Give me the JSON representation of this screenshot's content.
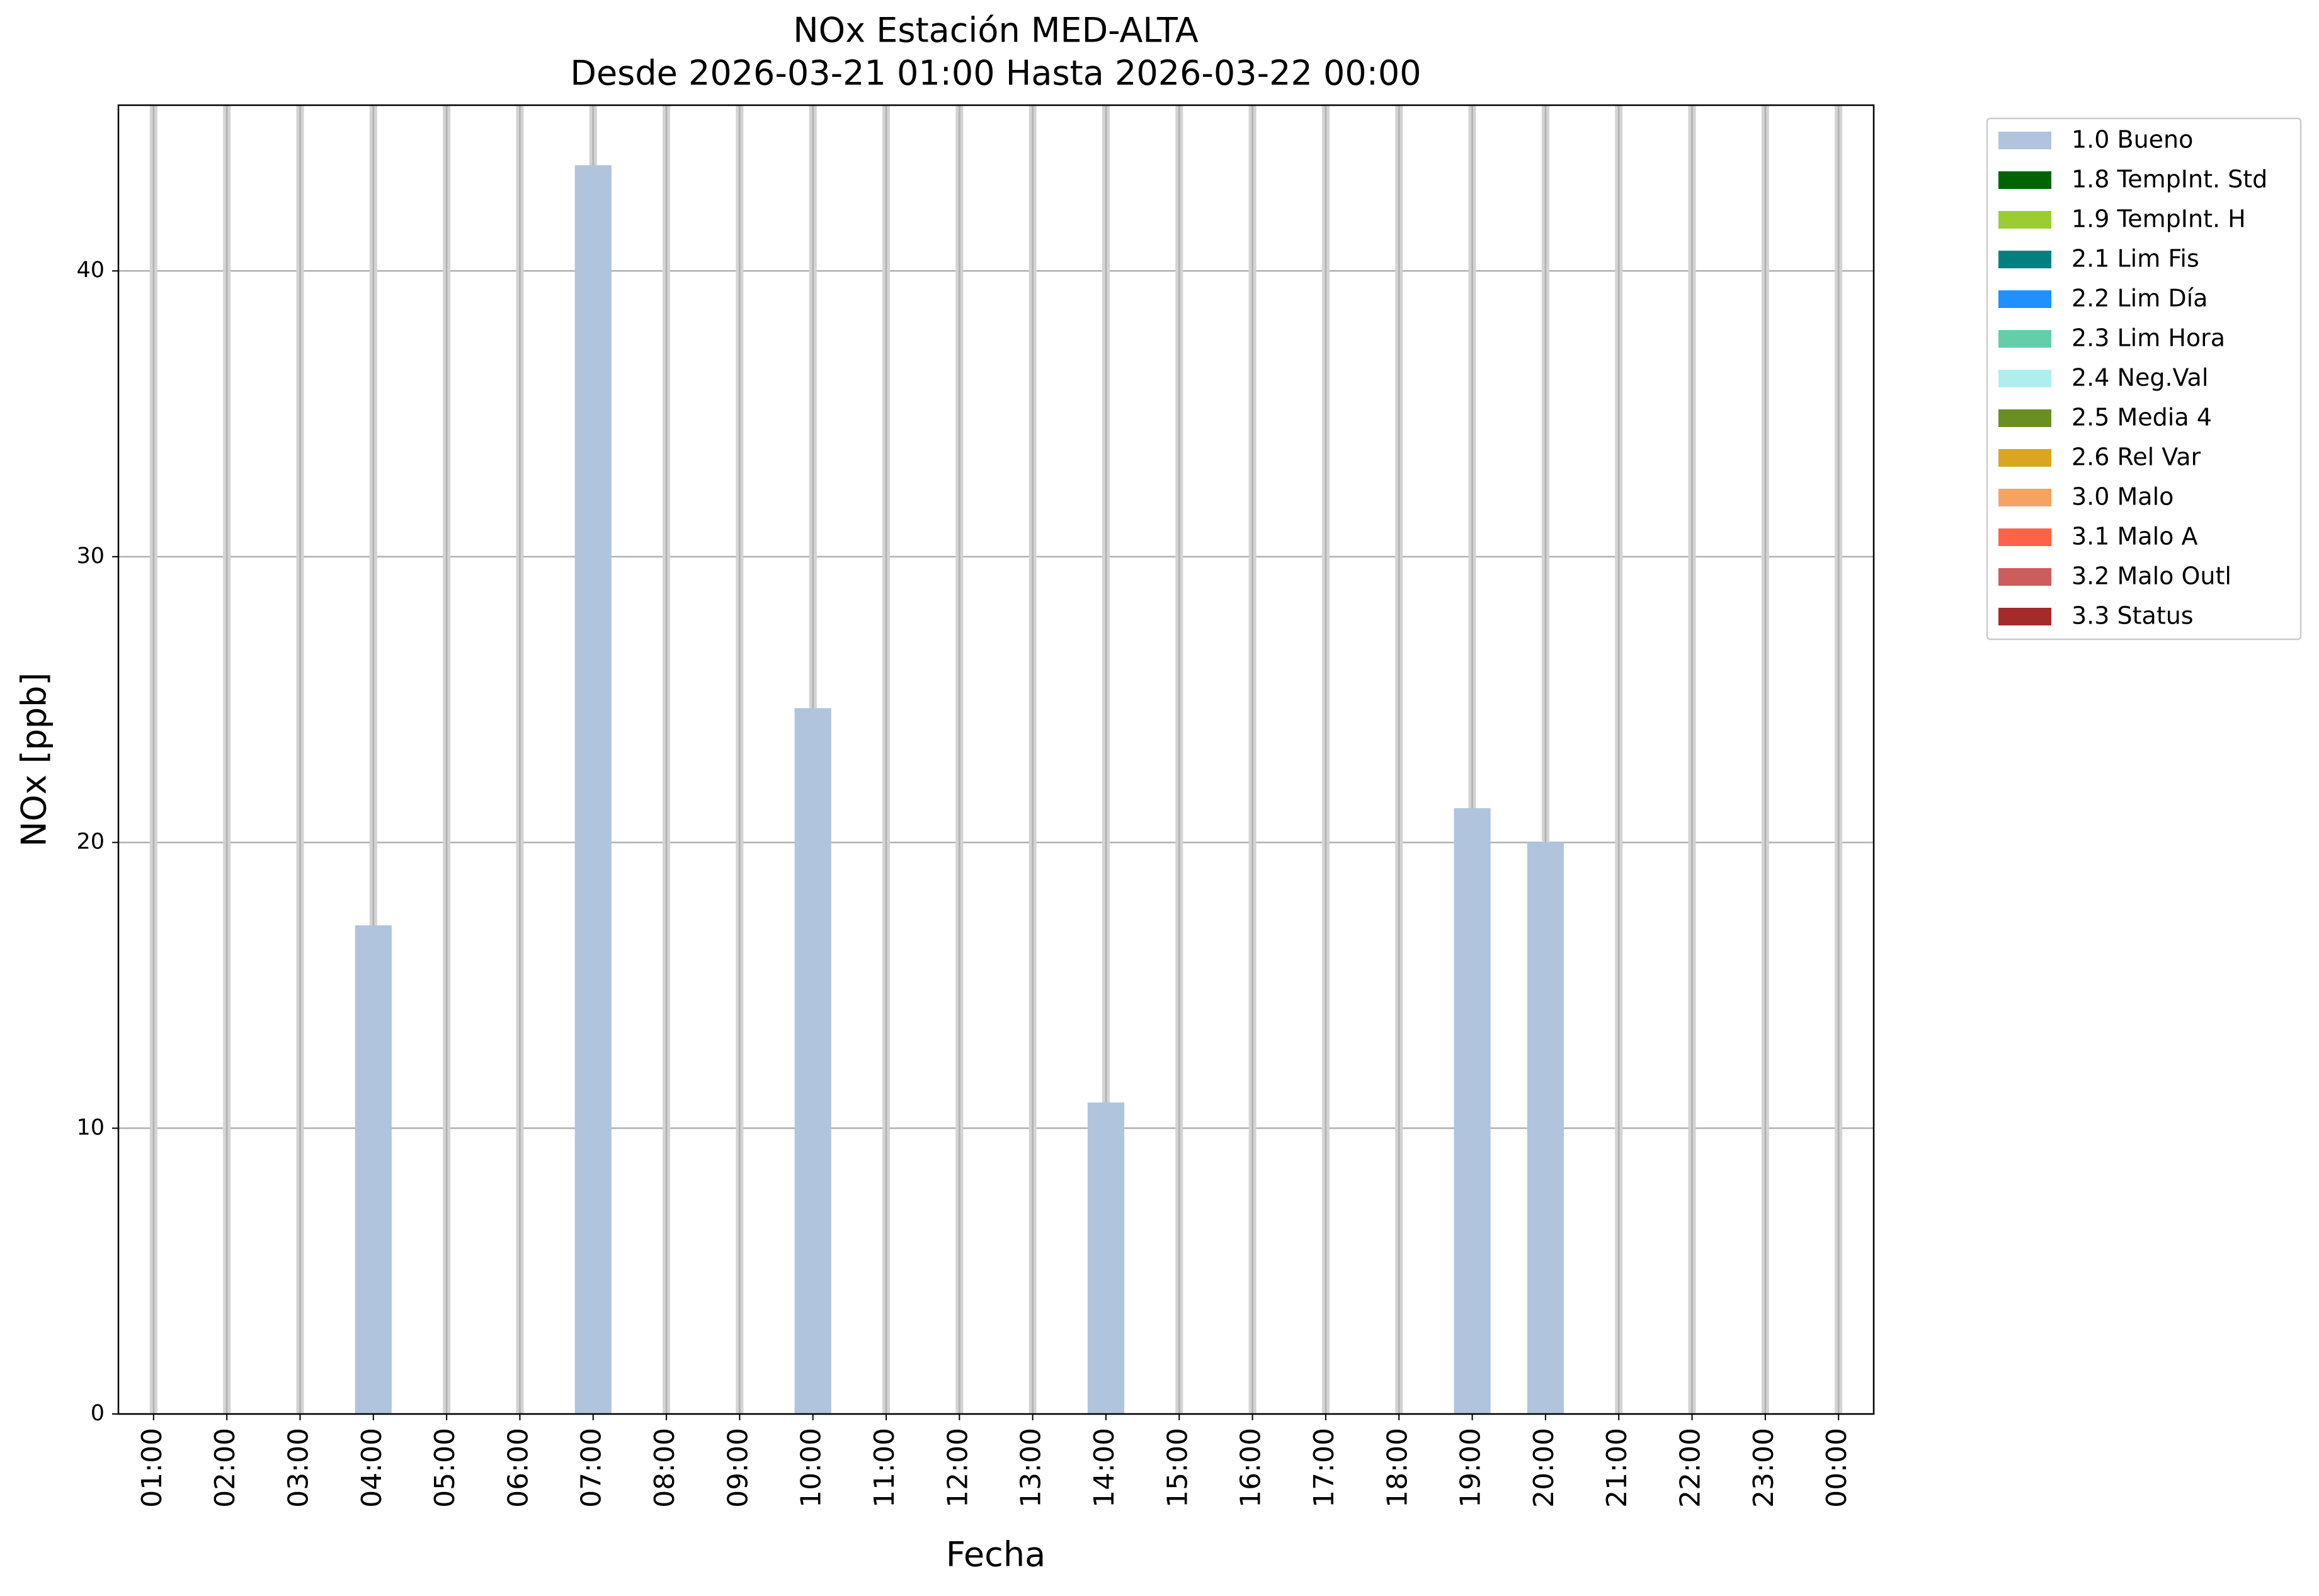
{
  "chart_data": {
    "type": "bar",
    "title": "NOx Estación MED-ALTA",
    "subtitle": "Desde 2026-03-21 01:00 Hasta 2026-03-22 00:00",
    "x_label": "Fecha",
    "y_label": "NOx [ppb]",
    "categories": [
      "01:00",
      "02:00",
      "03:00",
      "04:00",
      "05:00",
      "06:00",
      "07:00",
      "08:00",
      "09:00",
      "10:00",
      "11:00",
      "12:00",
      "13:00",
      "14:00",
      "15:00",
      "16:00",
      "17:00",
      "18:00",
      "19:00",
      "20:00",
      "21:00",
      "22:00",
      "23:00",
      "00:00"
    ],
    "series": [
      {
        "name": "1.0 Bueno",
        "color": "#b0c4de",
        "values": [
          null,
          null,
          null,
          17.1,
          null,
          null,
          43.7,
          null,
          null,
          24.7,
          null,
          null,
          null,
          10.9,
          null,
          null,
          null,
          null,
          21.2,
          20.0,
          null,
          null,
          null,
          null
        ]
      },
      {
        "name": "1.8 TempInt. Std",
        "color": "#006400",
        "values": [
          null,
          null,
          null,
          null,
          null,
          null,
          null,
          null,
          null,
          null,
          null,
          null,
          null,
          null,
          null,
          null,
          null,
          null,
          null,
          null,
          null,
          null,
          null,
          null
        ]
      },
      {
        "name": "1.9 TempInt. H",
        "color": "#9acd32",
        "values": [
          null,
          null,
          null,
          null,
          null,
          null,
          null,
          null,
          null,
          null,
          null,
          null,
          null,
          null,
          null,
          null,
          null,
          null,
          null,
          null,
          null,
          null,
          null,
          null
        ]
      },
      {
        "name": "2.1 Lim Fis",
        "color": "#008080",
        "values": [
          null,
          null,
          null,
          null,
          null,
          null,
          null,
          null,
          null,
          null,
          null,
          null,
          null,
          null,
          null,
          null,
          null,
          null,
          null,
          null,
          null,
          null,
          null,
          null
        ]
      },
      {
        "name": "2.2 Lim Día",
        "color": "#1e90ff",
        "values": [
          null,
          null,
          null,
          null,
          null,
          null,
          null,
          null,
          null,
          null,
          null,
          null,
          null,
          null,
          null,
          null,
          null,
          null,
          null,
          null,
          null,
          null,
          null,
          null
        ]
      },
      {
        "name": "2.3 Lim Hora",
        "color": "#66cdaa",
        "values": [
          null,
          null,
          null,
          null,
          null,
          null,
          null,
          null,
          null,
          null,
          null,
          null,
          null,
          null,
          null,
          null,
          null,
          null,
          null,
          null,
          null,
          null,
          null,
          null
        ]
      },
      {
        "name": "2.4 Neg.Val",
        "color": "#afeeee",
        "values": [
          null,
          null,
          null,
          null,
          null,
          null,
          null,
          null,
          null,
          null,
          null,
          null,
          null,
          null,
          null,
          null,
          null,
          null,
          null,
          null,
          null,
          null,
          null,
          null
        ]
      },
      {
        "name": "2.5 Media 4",
        "color": "#6b8e23",
        "values": [
          null,
          null,
          null,
          null,
          null,
          null,
          null,
          null,
          null,
          null,
          null,
          null,
          null,
          null,
          null,
          null,
          null,
          null,
          null,
          null,
          null,
          null,
          null,
          null
        ]
      },
      {
        "name": "2.6 Rel Var",
        "color": "#daa520",
        "values": [
          null,
          null,
          null,
          null,
          null,
          null,
          null,
          null,
          null,
          null,
          null,
          null,
          null,
          null,
          null,
          null,
          null,
          null,
          null,
          null,
          null,
          null,
          null,
          null
        ]
      },
      {
        "name": "3.0 Malo",
        "color": "#f4a460",
        "values": [
          null,
          null,
          null,
          null,
          null,
          null,
          null,
          null,
          null,
          null,
          null,
          null,
          null,
          null,
          null,
          null,
          null,
          null,
          null,
          null,
          null,
          null,
          null,
          null
        ]
      },
      {
        "name": "3.1 Malo A",
        "color": "#ff6347",
        "values": [
          null,
          null,
          null,
          null,
          null,
          null,
          null,
          null,
          null,
          null,
          null,
          null,
          null,
          null,
          null,
          null,
          null,
          null,
          null,
          null,
          null,
          null,
          null,
          null
        ]
      },
      {
        "name": "3.2 Malo Outl",
        "color": "#cd5c5c",
        "values": [
          null,
          null,
          null,
          null,
          null,
          null,
          null,
          null,
          null,
          null,
          null,
          null,
          null,
          null,
          null,
          null,
          null,
          null,
          null,
          null,
          null,
          null,
          null,
          null
        ]
      },
      {
        "name": "3.3 Status",
        "color": "#a52a2a",
        "values": [
          null,
          null,
          null,
          null,
          null,
          null,
          null,
          null,
          null,
          null,
          null,
          null,
          null,
          null,
          null,
          null,
          null,
          null,
          null,
          null,
          null,
          null,
          null,
          null
        ]
      }
    ],
    "ylim": [
      0,
      45.8
    ],
    "yticks": [
      0,
      10,
      20,
      30,
      40
    ],
    "grid": true,
    "legend": "outside-upper-right"
  }
}
